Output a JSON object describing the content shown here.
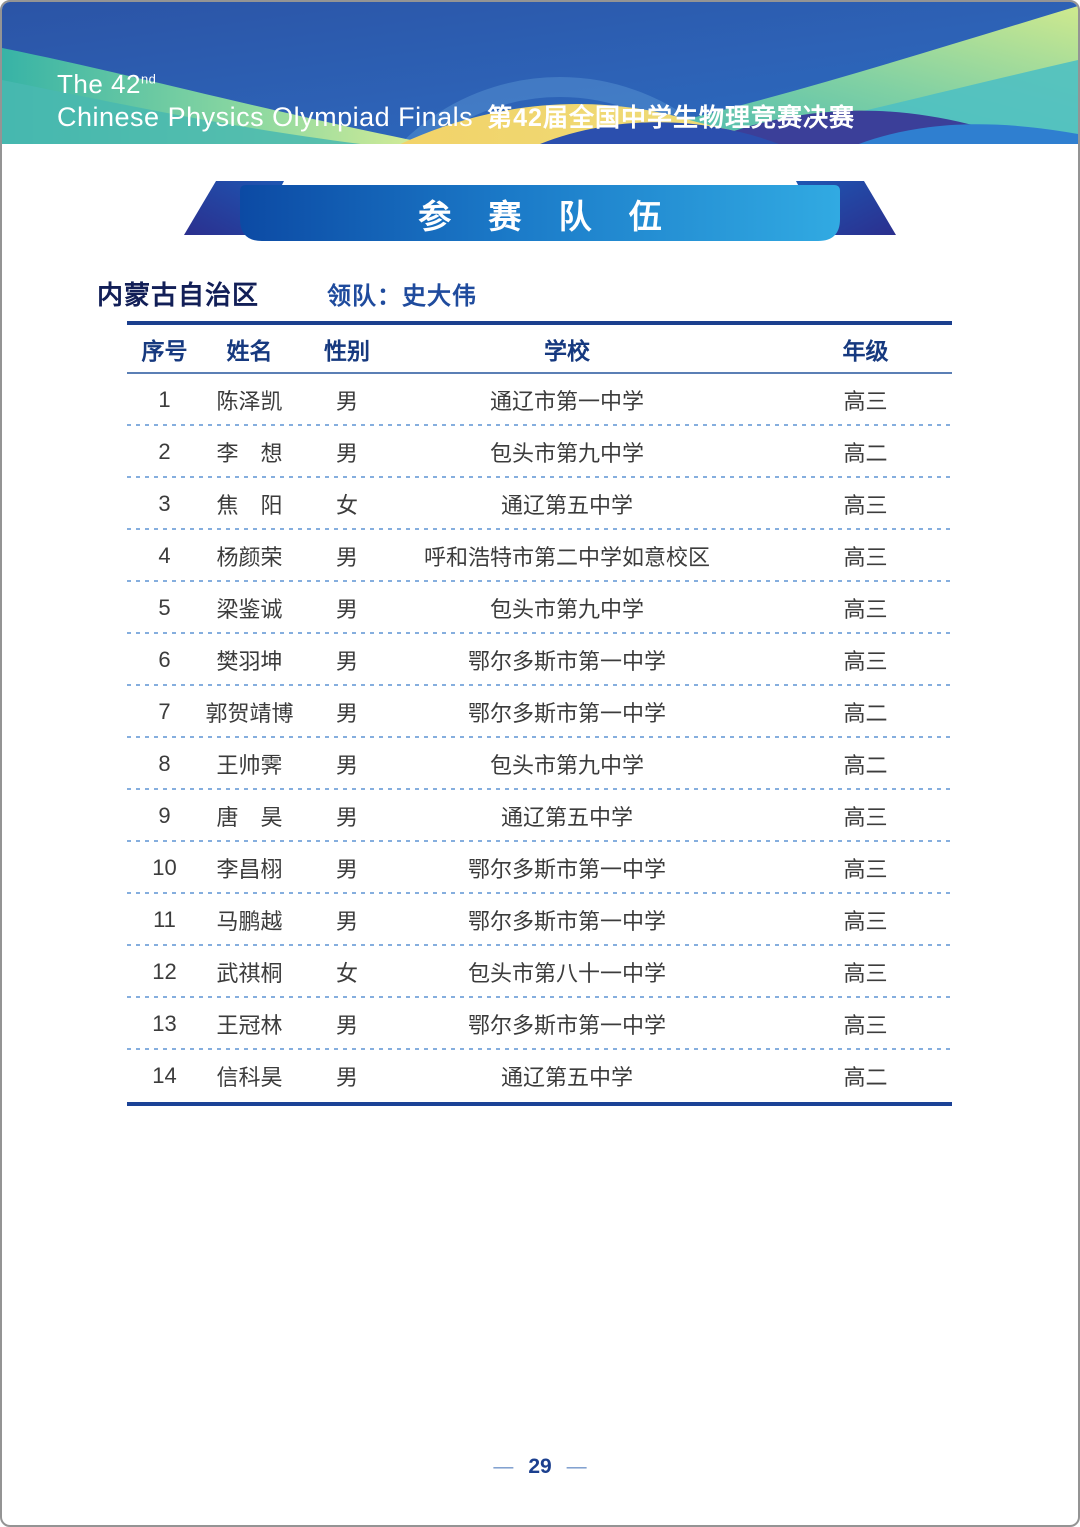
{
  "header": {
    "line1": "The 42",
    "line1_sup": "nd",
    "line2_en": "Chinese Physics Olympiad Finals",
    "line2_cn": "第42届全国中学生物理竞赛决赛"
  },
  "banner": {
    "title": "参 赛 队 伍"
  },
  "section": {
    "province": "内蒙古自治区",
    "leader": "领队：史大伟"
  },
  "table": {
    "columns": [
      "序号",
      "姓名",
      "性别",
      "学校",
      "年级"
    ],
    "rows": [
      {
        "no": "1",
        "name": "陈泽凯",
        "gender": "男",
        "school": "通辽市第一中学",
        "grade": "高三"
      },
      {
        "no": "2",
        "name": "李　想",
        "gender": "男",
        "school": "包头市第九中学",
        "grade": "高二"
      },
      {
        "no": "3",
        "name": "焦　阳",
        "gender": "女",
        "school": "通辽第五中学",
        "grade": "高三"
      },
      {
        "no": "4",
        "name": "杨颜荣",
        "gender": "男",
        "school": "呼和浩特市第二中学如意校区",
        "grade": "高三"
      },
      {
        "no": "5",
        "name": "梁鉴诚",
        "gender": "男",
        "school": "包头市第九中学",
        "grade": "高三"
      },
      {
        "no": "6",
        "name": "樊羽坤",
        "gender": "男",
        "school": "鄂尔多斯市第一中学",
        "grade": "高三"
      },
      {
        "no": "7",
        "name": "郭贺靖博",
        "gender": "男",
        "school": "鄂尔多斯市第一中学",
        "grade": "高二"
      },
      {
        "no": "8",
        "name": "王帅霁",
        "gender": "男",
        "school": "包头市第九中学",
        "grade": "高二"
      },
      {
        "no": "9",
        "name": "唐　昊",
        "gender": "男",
        "school": "通辽第五中学",
        "grade": "高三"
      },
      {
        "no": "10",
        "name": "李昌栩",
        "gender": "男",
        "school": "鄂尔多斯市第一中学",
        "grade": "高三"
      },
      {
        "no": "11",
        "name": "马鹏越",
        "gender": "男",
        "school": "鄂尔多斯市第一中学",
        "grade": "高三"
      },
      {
        "no": "12",
        "name": "武祺桐",
        "gender": "女",
        "school": "包头市第八十一中学",
        "grade": "高三"
      },
      {
        "no": "13",
        "name": "王冠林",
        "gender": "男",
        "school": "鄂尔多斯市第一中学",
        "grade": "高三"
      },
      {
        "no": "14",
        "name": "信科昊",
        "gender": "男",
        "school": "通辽第五中学",
        "grade": "高二"
      }
    ]
  },
  "footer": {
    "dash": "—",
    "page_number": "29"
  },
  "colors": {
    "header_blue": "#2d5cb0",
    "rule_navy": "#1b3f8e",
    "table_header_text": "#16397f",
    "province_text": "#121f57",
    "leader_text": "#1f4b9d",
    "data_text": "#3c3c3c",
    "dotted_separator": "#85aede",
    "ribbon_dark": "#0c4aa4",
    "ribbon_bright": "#31aae2"
  }
}
